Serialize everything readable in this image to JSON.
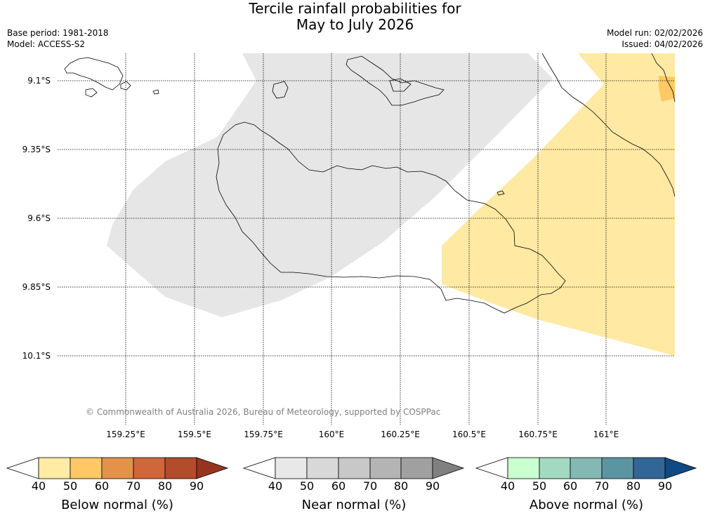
{
  "title": {
    "line1": "Tercile rainfall probabilities for",
    "line2": "May to July 2026"
  },
  "metadata": {
    "base_period": "Base period: 1981-2018",
    "model": "Model: ACCESS-S2",
    "model_run": "Model run: 02/02/2026",
    "issued": "Issued: 04/02/2026"
  },
  "map": {
    "latitude_labels": [
      "9.1°S",
      "9.35°S",
      "9.6°S",
      "9.85°S",
      "10.1°S"
    ],
    "longitude_labels": [
      "159.25°E",
      "159.5°E",
      "159.75°E",
      "160°E",
      "160.25°E",
      "160.5°E",
      "160.75°E",
      "161°E"
    ],
    "copyright": "© Commonwealth of Australia 2026, Bureau of Meteorology, supported by COSPPac",
    "regions": [
      {
        "category": "Near normal",
        "probability_band": "40-50",
        "color": "#e6e6e6"
      },
      {
        "category": "Below normal",
        "probability_band": "40-50",
        "color": "#ffe9a3"
      },
      {
        "category": "Below normal",
        "probability_band": "50-60",
        "color": "#ffc864"
      }
    ]
  },
  "colorbars": [
    {
      "label": "Below normal (%)",
      "ticks": [
        "40",
        "50",
        "60",
        "70",
        "80",
        "90"
      ],
      "colors": [
        "#ffffff",
        "#ffeba3",
        "#ffc864",
        "#e4924a",
        "#d0663a",
        "#b34c2a",
        "#973420"
      ]
    },
    {
      "label": "Near normal (%)",
      "ticks": [
        "40",
        "50",
        "60",
        "70",
        "80",
        "90"
      ],
      "colors": [
        "#ffffff",
        "#e8e8e8",
        "#d8d8d8",
        "#c8c8c8",
        "#b4b4b4",
        "#a0a0a0",
        "#808080"
      ]
    },
    {
      "label": "Above normal (%)",
      "ticks": [
        "40",
        "50",
        "60",
        "70",
        "80",
        "90"
      ],
      "colors": [
        "#ffffff",
        "#caffd0",
        "#a2d9c0",
        "#84b8b4",
        "#5c95a2",
        "#326696",
        "#0e4a84"
      ]
    }
  ]
}
